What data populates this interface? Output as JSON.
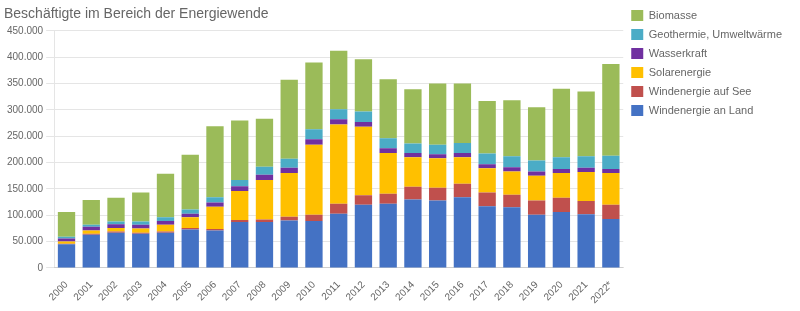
{
  "chart_data": {
    "type": "bar",
    "title": "Beschäftigte im Bereich der Energiewende",
    "categories": [
      "2000",
      "2001",
      "2002",
      "2003",
      "2004",
      "2005",
      "2006",
      "2007",
      "2008",
      "2009",
      "2010",
      "2011",
      "2012",
      "2013",
      "2014",
      "2015",
      "2016",
      "2017",
      "2018",
      "2019",
      "2020",
      "2021",
      "2022*"
    ],
    "series": [
      {
        "name": "Windenergie an Land",
        "color": "#4472C4",
        "values": [
          45000,
          63000,
          67000,
          65000,
          67000,
          73000,
          71000,
          87000,
          87000,
          90000,
          89000,
          103000,
          120000,
          122000,
          130000,
          128000,
          134000,
          117000,
          115000,
          101000,
          106000,
          102000,
          93000
        ]
      },
      {
        "name": "Windenergie auf See",
        "color": "#C0504D",
        "values": [
          1000,
          2000,
          2000,
          2000,
          2000,
          3000,
          3000,
          4000,
          5000,
          7000,
          12000,
          19000,
          18000,
          19000,
          24000,
          24000,
          26000,
          26000,
          24000,
          27000,
          27000,
          25000,
          27000
        ]
      },
      {
        "name": "Solarenergie",
        "color": "#FFC000",
        "values": [
          4000,
          6000,
          7000,
          8000,
          13000,
          20000,
          42000,
          55000,
          75000,
          83000,
          133000,
          150000,
          130000,
          77000,
          56000,
          56000,
          50000,
          46000,
          44000,
          47000,
          47000,
          55000,
          60000
        ]
      },
      {
        "name": "Wasserkraft",
        "color": "#7030A0",
        "values": [
          6000,
          7000,
          7000,
          7000,
          7000,
          7000,
          8000,
          9000,
          10000,
          10000,
          10000,
          10000,
          9000,
          9000,
          8000,
          8000,
          8000,
          8000,
          8000,
          8000,
          8000,
          8000,
          8000
        ]
      },
      {
        "name": "Geothermie, Umweltwärme",
        "color": "#4BACC6",
        "values": [
          3000,
          4000,
          5000,
          6000,
          7000,
          8000,
          10000,
          12000,
          15000,
          17000,
          19000,
          19000,
          20000,
          19000,
          18000,
          18000,
          19000,
          20000,
          21000,
          21000,
          22000,
          22000,
          25000
        ]
      },
      {
        "name": "Biomasse",
        "color": "#9BBB59",
        "values": [
          47000,
          47000,
          45000,
          55000,
          83000,
          104000,
          135000,
          113000,
          91000,
          150000,
          127000,
          111000,
          99000,
          112000,
          103000,
          116000,
          113000,
          100000,
          106000,
          101000,
          130000,
          123000,
          174000
        ]
      }
    ],
    "stacked": true,
    "ylim": [
      0,
      450000
    ],
    "yticks": [
      0,
      {
        "value": 50000,
        "label": "50.000"
      },
      {
        "value": 100000,
        "label": "100.000"
      },
      {
        "value": 150000,
        "label": "150.000"
      },
      {
        "value": 200000,
        "label": "200.000"
      },
      {
        "value": 250000,
        "label": "250.000"
      },
      {
        "value": 300000,
        "label": "300.000"
      },
      {
        "value": 350000,
        "label": "350.000"
      },
      {
        "value": 400000,
        "label": "400.000"
      },
      {
        "value": 450000,
        "label": "450.000"
      }
    ],
    "grid": "y",
    "legend": "right"
  }
}
